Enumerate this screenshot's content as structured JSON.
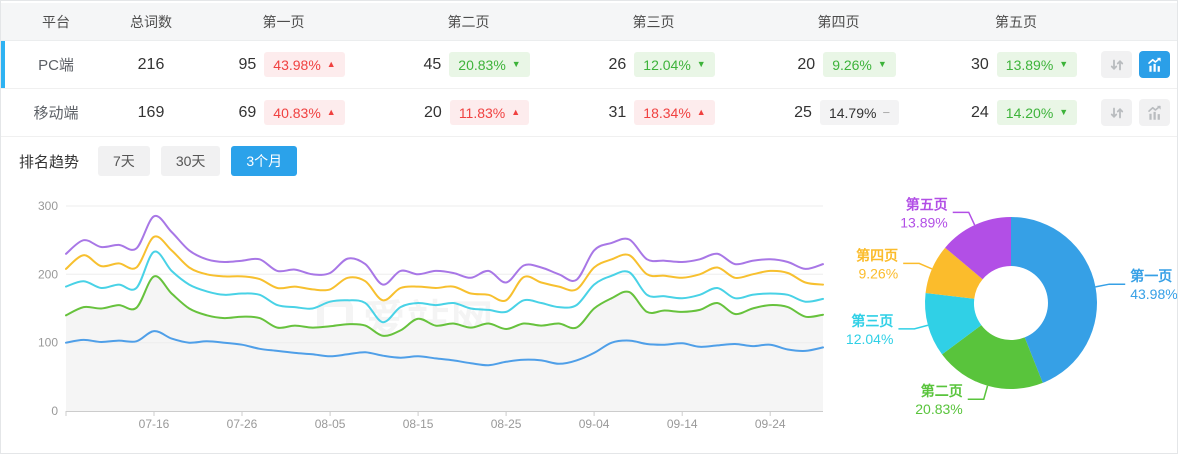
{
  "colors": {
    "accent_blue": "#2b9fe8",
    "selected_bar": "#2eb2f2",
    "badge_red_text": "#f04140",
    "badge_green_text": "#3db33a",
    "axis_text": "#999999",
    "grid_line": "#ededed",
    "area_fill": "#f5f5f5"
  },
  "table": {
    "columns": [
      "平台",
      "总词数",
      "第一页",
      "第二页",
      "第三页",
      "第四页",
      "第五页"
    ],
    "rows": [
      {
        "platform": "PC端",
        "total": "216",
        "selected": true,
        "trend_active": true,
        "pages": [
          {
            "count": "95",
            "pct": "43.98%",
            "arrow": "▲",
            "dir": "up",
            "tone": "red"
          },
          {
            "count": "45",
            "pct": "20.83%",
            "arrow": "▼",
            "dir": "down",
            "tone": "green"
          },
          {
            "count": "26",
            "pct": "12.04%",
            "arrow": "▼",
            "dir": "down",
            "tone": "green"
          },
          {
            "count": "20",
            "pct": "9.26%",
            "arrow": "▼",
            "dir": "down",
            "tone": "green"
          },
          {
            "count": "30",
            "pct": "13.89%",
            "arrow": "▼",
            "dir": "down",
            "tone": "green"
          }
        ]
      },
      {
        "platform": "移动端",
        "total": "169",
        "selected": false,
        "trend_active": false,
        "pages": [
          {
            "count": "69",
            "pct": "40.83%",
            "arrow": "▲",
            "dir": "up",
            "tone": "red"
          },
          {
            "count": "20",
            "pct": "11.83%",
            "arrow": "▲",
            "dir": "up",
            "tone": "red"
          },
          {
            "count": "31",
            "pct": "18.34%",
            "arrow": "▲",
            "dir": "up",
            "tone": "red"
          },
          {
            "count": "25",
            "pct": "14.79%",
            "arrow": "−",
            "dir": "flat",
            "tone": "gray"
          },
          {
            "count": "24",
            "pct": "14.20%",
            "arrow": "▼",
            "dir": "down",
            "tone": "green"
          }
        ]
      }
    ]
  },
  "trend": {
    "title": "排名趋势",
    "ranges": [
      {
        "label": "7天",
        "active": false
      },
      {
        "label": "30天",
        "active": false
      },
      {
        "label": "3个月",
        "active": true
      }
    ]
  },
  "watermark": "爱站网",
  "chart_data": [
    {
      "type": "line",
      "title": "排名趋势 3个月",
      "ylim": [
        0,
        300
      ],
      "y_ticks": [
        0,
        100,
        200,
        300
      ],
      "grid": true,
      "legend": "none",
      "x": [
        "07-06",
        "07-08",
        "07-10",
        "07-12",
        "07-14",
        "07-16",
        "07-18",
        "07-20",
        "07-22",
        "07-24",
        "07-26",
        "07-28",
        "07-30",
        "08-01",
        "08-03",
        "08-05",
        "08-07",
        "08-09",
        "08-11",
        "08-13",
        "08-15",
        "08-17",
        "08-19",
        "08-21",
        "08-23",
        "08-25",
        "08-27",
        "08-29",
        "08-31",
        "09-02",
        "09-04",
        "09-06",
        "09-08",
        "09-10",
        "09-12",
        "09-14",
        "09-16",
        "09-18",
        "09-20",
        "09-22",
        "09-24",
        "09-26",
        "09-28",
        "09-30"
      ],
      "x_tick_indices": [
        5,
        10,
        15,
        20,
        25,
        30,
        35,
        40
      ],
      "x_tick_labels": [
        "07-16",
        "07-26",
        "08-05",
        "08-15",
        "08-25",
        "09-04",
        "09-14",
        "09-24"
      ],
      "series": [
        {
          "name": "第一页",
          "color": "#4f9fe8",
          "area": false,
          "values": [
            100,
            104,
            101,
            103,
            102,
            117,
            106,
            100,
            102,
            100,
            97,
            91,
            88,
            85,
            83,
            80,
            83,
            86,
            81,
            78,
            80,
            77,
            74,
            70,
            67,
            72,
            75,
            74,
            69,
            74,
            85,
            100,
            103,
            98,
            97,
            99,
            94,
            96,
            98,
            95,
            97,
            90,
            88,
            93
          ]
        },
        {
          "name": "第二页",
          "color": "#67c23d",
          "area": true,
          "values": [
            140,
            152,
            150,
            155,
            151,
            197,
            172,
            150,
            140,
            136,
            138,
            136,
            122,
            125,
            122,
            124,
            127,
            125,
            110,
            118,
            135,
            125,
            128,
            122,
            128,
            120,
            128,
            125,
            128,
            122,
            150,
            165,
            174,
            145,
            147,
            145,
            148,
            158,
            142,
            150,
            155,
            152,
            138,
            141
          ]
        },
        {
          "name": "第三页",
          "color": "#49d2e6",
          "area": false,
          "values": [
            182,
            190,
            180,
            185,
            180,
            233,
            205,
            185,
            175,
            170,
            172,
            170,
            155,
            152,
            150,
            160,
            162,
            158,
            130,
            152,
            158,
            155,
            158,
            150,
            148,
            145,
            162,
            158,
            152,
            155,
            185,
            198,
            203,
            170,
            168,
            165,
            170,
            180,
            165,
            170,
            172,
            170,
            160,
            164
          ]
        },
        {
          "name": "第四页",
          "color": "#f7c02f",
          "area": false,
          "values": [
            208,
            228,
            212,
            216,
            210,
            255,
            235,
            210,
            200,
            197,
            197,
            193,
            180,
            182,
            178,
            178,
            195,
            190,
            162,
            180,
            182,
            180,
            182,
            172,
            170,
            162,
            196,
            188,
            182,
            178,
            210,
            222,
            228,
            200,
            198,
            195,
            200,
            210,
            195,
            200,
            205,
            202,
            188,
            185
          ]
        },
        {
          "name": "第五页",
          "color": "#a877e6",
          "area": false,
          "values": [
            230,
            250,
            240,
            243,
            238,
            285,
            262,
            235,
            222,
            218,
            220,
            222,
            205,
            207,
            200,
            202,
            223,
            215,
            185,
            205,
            200,
            205,
            202,
            195,
            205,
            188,
            213,
            210,
            200,
            192,
            235,
            246,
            251,
            222,
            220,
            218,
            222,
            230,
            215,
            220,
            222,
            218,
            208,
            215
          ]
        }
      ]
    },
    {
      "type": "pie",
      "donut": true,
      "legend": "labels-with-leader-lines",
      "slices": [
        {
          "label": "第一页",
          "value": 43.98,
          "display": "43.98%",
          "color": "#36a0e6"
        },
        {
          "label": "第二页",
          "value": 20.83,
          "display": "20.83%",
          "color": "#59c43c"
        },
        {
          "label": "第三页",
          "value": 12.04,
          "display": "12.04%",
          "color": "#30d0e6"
        },
        {
          "label": "第四页",
          "value": 9.26,
          "display": "9.26%",
          "color": "#fbbc2c"
        },
        {
          "label": "第五页",
          "value": 13.89,
          "display": "13.89%",
          "color": "#b24fe6"
        }
      ]
    }
  ]
}
